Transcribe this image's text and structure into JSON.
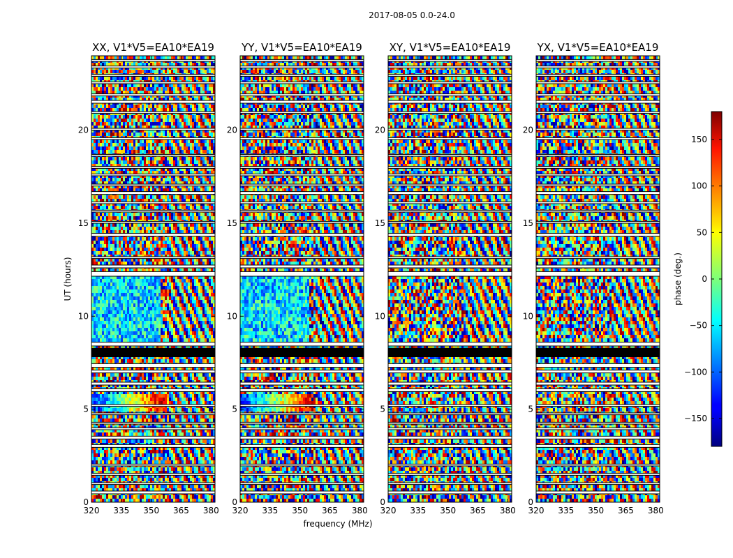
{
  "chart_data": {
    "type": "heatmap",
    "suptitle": "2017-08-05 0.0-24.0",
    "panels": [
      {
        "title": "XX, V1*V5=EA10*EA19",
        "coherent_region": "low-frequency"
      },
      {
        "title": "YY, V1*V5=EA10*EA19",
        "coherent_region": "low-frequency"
      },
      {
        "title": "XY, V1*V5=EA10*EA19",
        "coherent_region": "none"
      },
      {
        "title": "YX, V1*V5=EA10*EA19",
        "coherent_region": "none"
      }
    ],
    "xlabel": "frequency (MHz)",
    "ylabel": "UT (hours)",
    "xlim": [
      320,
      382
    ],
    "ylim": [
      0,
      24
    ],
    "xticks": [
      320,
      335,
      350,
      365,
      380
    ],
    "yticks": [
      0,
      5,
      10,
      15,
      20
    ],
    "colorbar": {
      "label": "phase (deg.)",
      "range": [
        -180,
        180
      ],
      "ticks": [
        150,
        100,
        50,
        0,
        -50,
        -100,
        -150
      ],
      "tick_labels": [
        "150",
        "100",
        "50",
        "0",
        "−50",
        "−100",
        "−150"
      ],
      "colormap": "jet"
    },
    "flagged_bands_hours": [
      [
        0.45,
        0.6
      ],
      [
        0.95,
        1.05
      ],
      [
        1.45,
        1.55
      ],
      [
        1.95,
        2.05
      ],
      [
        2.95,
        3.1
      ],
      [
        3.4,
        3.55
      ],
      [
        3.9,
        4.0
      ],
      [
        4.2,
        4.3
      ],
      [
        4.7,
        4.8
      ],
      [
        5.15,
        5.25
      ],
      [
        5.95,
        6.1
      ],
      [
        6.3,
        6.45
      ],
      [
        6.95,
        7.1
      ],
      [
        7.25,
        7.45
      ],
      [
        7.8,
        8.3
      ],
      [
        8.4,
        8.6
      ],
      [
        12.15,
        12.4
      ],
      [
        12.6,
        12.75
      ],
      [
        13.1,
        13.2
      ],
      [
        14.3,
        14.45
      ],
      [
        15.0,
        15.1
      ],
      [
        15.6,
        15.7
      ],
      [
        16.05,
        16.15
      ],
      [
        16.55,
        16.7
      ],
      [
        17.0,
        17.1
      ],
      [
        17.55,
        17.65
      ],
      [
        17.95,
        18.05
      ],
      [
        18.6,
        18.7
      ],
      [
        19.5,
        19.6
      ],
      [
        20.0,
        20.1
      ],
      [
        20.9,
        21.0
      ],
      [
        21.45,
        21.6
      ],
      [
        21.85,
        21.95
      ],
      [
        22.5,
        22.6
      ],
      [
        22.9,
        23.0
      ],
      [
        23.35,
        23.45
      ],
      [
        23.7,
        23.8
      ]
    ]
  }
}
